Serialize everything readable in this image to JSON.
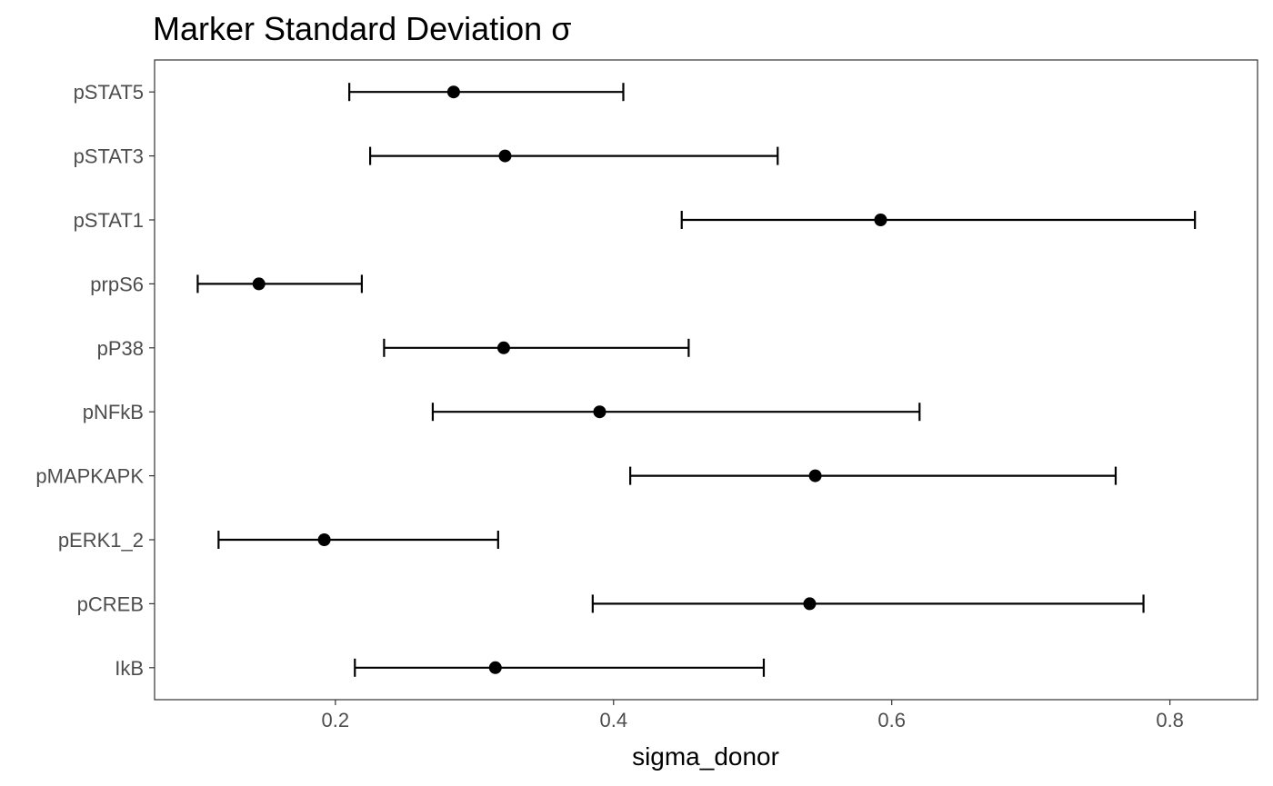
{
  "chart_data": {
    "type": "scatter",
    "subtype": "point-range (estimate with interval)",
    "title": "Marker Standard Deviation σ",
    "xlabel": "sigma_donor",
    "ylabel": "",
    "xlim": [
      0.07,
      0.863
    ],
    "x_ticks": [
      "0.2",
      "0.4",
      "0.6",
      "0.8"
    ],
    "grid": false,
    "legend": "none",
    "colors": {
      "point": "#000000",
      "bar": "#000000",
      "panel_border": "#333333",
      "tick_label": "#4d4d4d"
    },
    "categories": [
      "pSTAT5",
      "pSTAT3",
      "pSTAT1",
      "prpS6",
      "pP38",
      "pNFkB",
      "pMAPKAPK",
      "pERK1_2",
      "pCREB",
      "IkB"
    ],
    "estimate": [
      0.285,
      0.322,
      0.592,
      0.145,
      0.321,
      0.39,
      0.545,
      0.192,
      0.541,
      0.315
    ],
    "lower": [
      0.21,
      0.225,
      0.449,
      0.101,
      0.235,
      0.27,
      0.412,
      0.116,
      0.385,
      0.214
    ],
    "upper": [
      0.407,
      0.518,
      0.818,
      0.219,
      0.454,
      0.62,
      0.761,
      0.317,
      0.781,
      0.508
    ]
  }
}
